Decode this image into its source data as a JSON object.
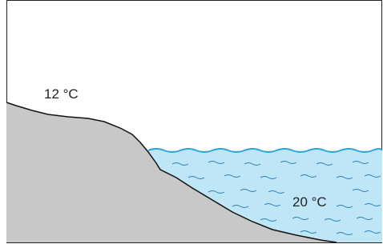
{
  "labels": [
    "12 °C",
    "20 °C"
  ]
}
